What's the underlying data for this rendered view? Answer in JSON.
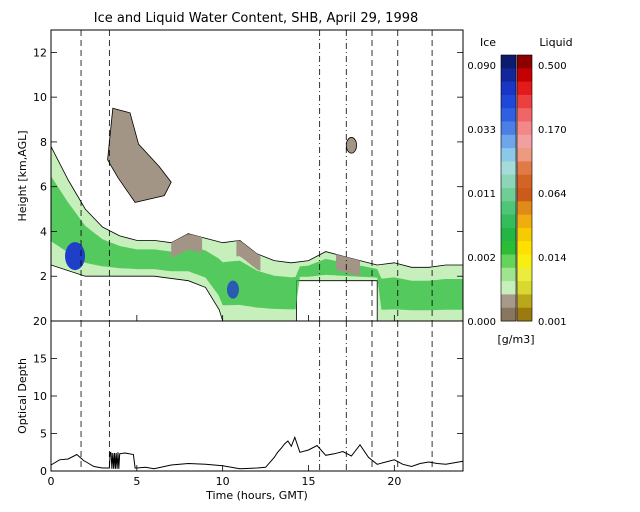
{
  "chart_data": [
    {
      "type": "heatmap",
      "title": "Ice and Liquid Water Content, SHB, April 29, 1998",
      "ylabel": "Height [km,AGL]",
      "xlim": [
        0,
        24
      ],
      "ylim": [
        0,
        13
      ],
      "yticks": [
        "2",
        "4",
        "6",
        "8",
        "10",
        "12"
      ],
      "vertical_markers": {
        "dashed": [
          1.75,
          3.4,
          18.7,
          20.2,
          22.2
        ],
        "dash_dot": [
          15.65,
          17.2
        ]
      },
      "cloud_top_km": [
        [
          0,
          7.8
        ],
        [
          1,
          6.3
        ],
        [
          2,
          5.0
        ],
        [
          3,
          4.2
        ],
        [
          4,
          3.8
        ],
        [
          5,
          3.6
        ],
        [
          6,
          3.6
        ],
        [
          7,
          3.5
        ],
        [
          8,
          3.9
        ],
        [
          9,
          3.7
        ],
        [
          10,
          3.5
        ],
        [
          11,
          3.6
        ],
        [
          12,
          3.0
        ],
        [
          13,
          2.7
        ],
        [
          14,
          2.6
        ],
        [
          15,
          2.7
        ],
        [
          16,
          3.1
        ],
        [
          17,
          2.9
        ],
        [
          18,
          2.7
        ],
        [
          19,
          2.5
        ],
        [
          20,
          2.6
        ],
        [
          21,
          2.4
        ],
        [
          22,
          2.4
        ],
        [
          23,
          2.5
        ],
        [
          24,
          2.5
        ]
      ],
      "cloud_base_km": [
        [
          0,
          2.5
        ],
        [
          2,
          2.0
        ],
        [
          4,
          2.0
        ],
        [
          6,
          2.0
        ],
        [
          8,
          1.8
        ],
        [
          9,
          1.5
        ],
        [
          9.8,
          0.5
        ],
        [
          10,
          0.0
        ],
        [
          14.3,
          0.0
        ],
        [
          14.3,
          1.8
        ],
        [
          19.0,
          1.8
        ],
        [
          19.0,
          0.0
        ],
        [
          24,
          0.0
        ]
      ],
      "upper_cloud": {
        "x": [
          3.3,
          7.0
        ],
        "top_km": 9.5,
        "base_km": 5.0
      },
      "small_cloud": {
        "x": [
          17.2,
          17.8
        ],
        "top_km": 8.2,
        "base_km": 7.5
      }
    },
    {
      "type": "line",
      "ylabel": "Optical Depth",
      "xlabel": "Time (hours, GMT)",
      "xlim": [
        0,
        24
      ],
      "ylim": [
        0,
        20
      ],
      "xticks": [
        "0",
        "5",
        "10",
        "15",
        "20"
      ],
      "yticks": [
        "0",
        "5",
        "10",
        "15",
        "20"
      ],
      "series": [
        {
          "x": [
            0,
            0.5,
            1,
            1.5,
            1.9,
            2.2,
            2.5,
            3,
            3.4,
            3.45,
            3.5,
            3.55,
            3.6,
            3.65,
            3.7,
            3.75,
            3.8,
            3.85,
            3.9,
            3.95,
            4,
            4.3,
            4.8,
            4.9,
            5,
            5.5,
            6,
            7,
            8,
            9,
            10,
            11,
            12,
            12.5,
            13,
            13.2,
            13.4,
            13.6,
            13.8,
            14,
            14.2,
            14.5,
            15,
            15.5,
            16,
            16.5,
            17,
            17.5,
            18,
            18.5,
            19,
            19.5,
            20,
            20.5,
            21,
            21.5,
            22,
            22.5,
            23,
            23.5,
            24
          ],
          "values": [
            0.8,
            1.5,
            1.6,
            2.2,
            1.4,
            1.0,
            0.6,
            0.4,
            0.4,
            2.5,
            2.4,
            0.3,
            2.4,
            0.3,
            2.4,
            0.3,
            2.4,
            0.3,
            2.5,
            0.3,
            2.3,
            2.4,
            2.2,
            0.4,
            0.4,
            0.5,
            0.3,
            0.8,
            1.0,
            0.9,
            0.7,
            0.3,
            0.4,
            0.5,
            1.8,
            2.5,
            3.0,
            3.6,
            4.0,
            3.3,
            4.5,
            2.5,
            2.8,
            3.4,
            2.1,
            2.3,
            2.6,
            2.0,
            3.5,
            1.8,
            0.9,
            1.2,
            1.5,
            0.9,
            0.6,
            1.0,
            1.2,
            1.0,
            0.9,
            1.1,
            1.3
          ]
        }
      ]
    }
  ],
  "xticks_bottom": [
    "0",
    "5",
    "10",
    "15",
    "20"
  ],
  "colorbar": {
    "ice_label": "Ice",
    "liquid_label": "Liquid",
    "unit_label": "[g/m3]",
    "ice_ticks": [
      "0.090",
      "0.033",
      "0.011",
      "0.002",
      "0.000"
    ],
    "liquid_ticks": [
      "0.500",
      "0.170",
      "0.064",
      "0.014",
      "0.001"
    ],
    "ice_colors": [
      "#0d1a6e",
      "#12259a",
      "#1835c4",
      "#1f48d8",
      "#2f60e0",
      "#4b7fe6",
      "#6fa6ea",
      "#8bc8ea",
      "#a3dcd8",
      "#8dd5b8",
      "#6fcd96",
      "#4fc57a",
      "#35bd5c",
      "#25b545",
      "#2bbd35",
      "#66d45a",
      "#9fe58f",
      "#c6efbb",
      "#a89a8a",
      "#8a7560"
    ],
    "liquid_colors": [
      "#8c0000",
      "#c40000",
      "#e31a1a",
      "#ec4040",
      "#f06666",
      "#f38888",
      "#f0a0a0",
      "#ee9a80",
      "#e07a48",
      "#d46425",
      "#cc5a1a",
      "#e08a18",
      "#f0ad10",
      "#f6cc00",
      "#ffe000",
      "#f8ef10",
      "#ecec3c",
      "#d8d830",
      "#bba81a",
      "#9c7a10"
    ]
  },
  "colors": {
    "ice_low": "#c6efbb",
    "ice_mid": "#2ebd3f",
    "ice_high": "#1f3fc8",
    "gray_cloud": "#a39585"
  }
}
